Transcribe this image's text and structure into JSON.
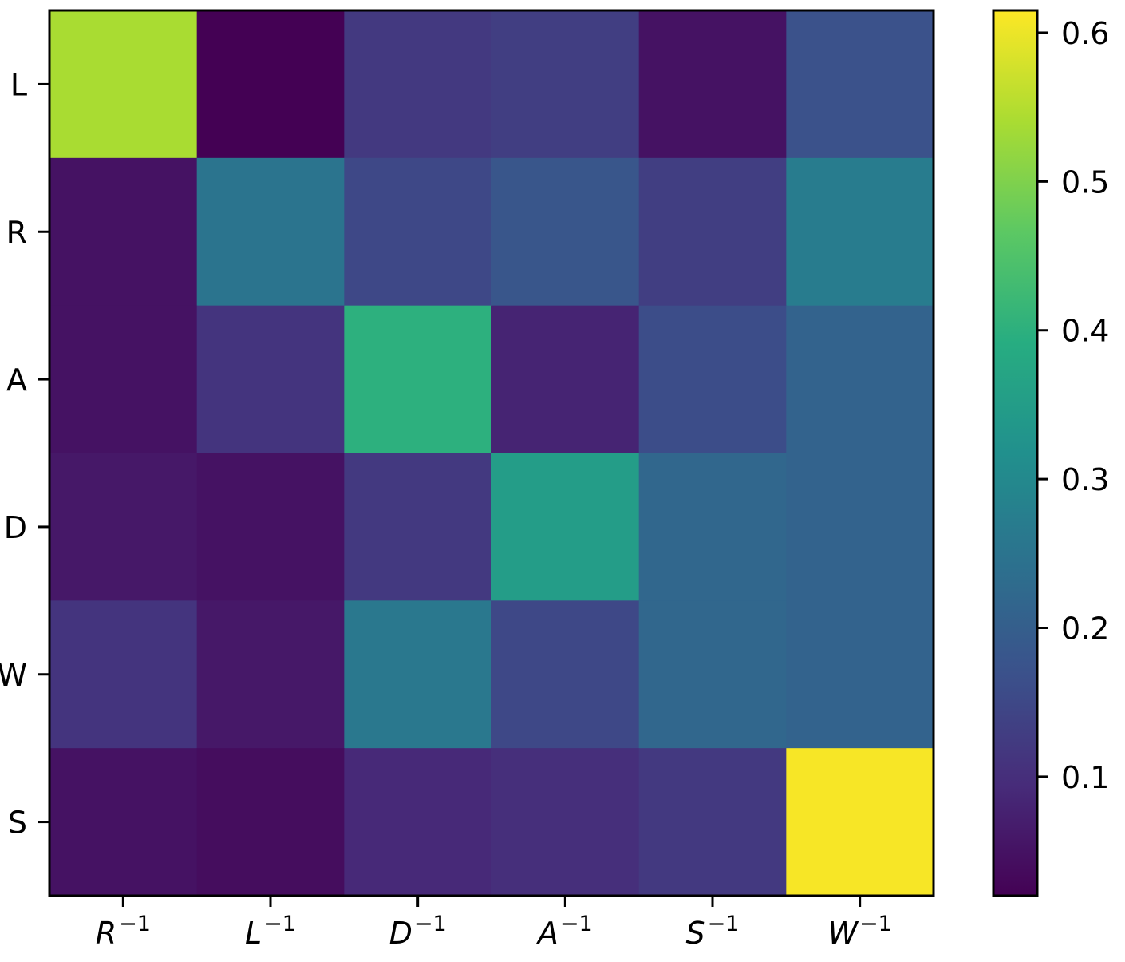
{
  "chart_data": {
    "type": "heatmap",
    "colormap": "viridis",
    "x_tick_labels": [
      {
        "base": "R",
        "exp": "−1"
      },
      {
        "base": "L",
        "exp": "−1"
      },
      {
        "base": "D",
        "exp": "−1"
      },
      {
        "base": "A",
        "exp": "−1"
      },
      {
        "base": "S",
        "exp": "−1"
      },
      {
        "base": "W",
        "exp": "−1"
      }
    ],
    "y_tick_labels": [
      "L",
      "R",
      "A",
      "D",
      "W",
      "S"
    ],
    "values": [
      [
        0.54,
        0.02,
        0.12,
        0.13,
        0.05,
        0.17
      ],
      [
        0.05,
        0.25,
        0.15,
        0.18,
        0.13,
        0.27
      ],
      [
        0.05,
        0.11,
        0.4,
        0.08,
        0.16,
        0.21
      ],
      [
        0.06,
        0.05,
        0.12,
        0.35,
        0.22,
        0.21
      ],
      [
        0.11,
        0.06,
        0.26,
        0.15,
        0.22,
        0.21
      ],
      [
        0.05,
        0.04,
        0.09,
        0.1,
        0.12,
        0.61
      ]
    ],
    "colorbar": {
      "range": [
        0.02,
        0.615
      ],
      "ticks": [
        0.1,
        0.2,
        0.3,
        0.4,
        0.5,
        0.6
      ],
      "tick_labels": [
        "0.1",
        "0.2",
        "0.3",
        "0.4",
        "0.5",
        "0.6"
      ]
    }
  }
}
